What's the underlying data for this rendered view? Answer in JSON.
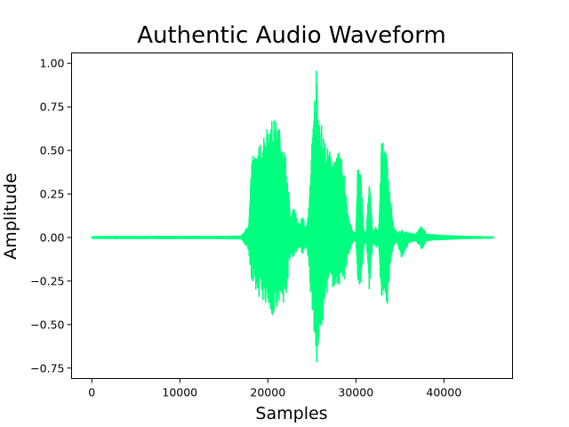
{
  "chart_data": {
    "type": "line",
    "title": "Authentic Audio Waveform",
    "xlabel": "Samples",
    "ylabel": "Amplitude",
    "xlim": [
      -2300,
      47800
    ],
    "ylim": [
      -0.81,
      1.06
    ],
    "x_ticks": [
      0,
      10000,
      20000,
      30000,
      40000
    ],
    "y_ticks": [
      -0.75,
      -0.5,
      -0.25,
      0.0,
      0.25,
      0.5,
      0.75,
      1.0
    ],
    "x_tick_labels": [
      "0",
      "10000",
      "20000",
      "30000",
      "40000"
    ],
    "y_tick_labels": [
      "−0.75",
      "−0.50",
      "−0.25",
      "0.00",
      "0.25",
      "0.50",
      "0.75",
      "1.00"
    ],
    "grid": false,
    "line_color": "#00ff7f",
    "series": [
      {
        "sample_count": 45700,
        "envelope": {
          "x": [
            0,
            2000,
            5000,
            8000,
            11000,
            14000,
            17000,
            17800,
            18200,
            18600,
            19000,
            19500,
            20000,
            20500,
            21000,
            21500,
            22000,
            22600,
            23000,
            23500,
            24000,
            24300,
            24600,
            25000,
            25300,
            25500,
            25800,
            26200,
            26700,
            27200,
            27700,
            28200,
            28700,
            29200,
            29600,
            30000,
            30200,
            30600,
            30900,
            31200,
            31500,
            31900,
            32300,
            32600,
            32900,
            33300,
            33600,
            34000,
            34300,
            34700,
            35200,
            36000,
            36800,
            37500,
            38000,
            39000,
            40000,
            41000,
            42500,
            44000,
            45700
          ],
          "upper": [
            0.005,
            0.006,
            0.006,
            0.006,
            0.006,
            0.006,
            0.008,
            0.07,
            0.5,
            0.46,
            0.52,
            0.6,
            0.65,
            0.68,
            0.67,
            0.6,
            0.48,
            0.12,
            0.18,
            0.07,
            0.13,
            0.04,
            0.13,
            0.55,
            0.81,
            1.0,
            0.76,
            0.62,
            0.52,
            0.49,
            0.45,
            0.5,
            0.36,
            0.12,
            0.04,
            0.02,
            0.43,
            0.35,
            0.04,
            0.03,
            0.38,
            0.03,
            0.06,
            0.04,
            0.55,
            0.53,
            0.44,
            0.2,
            0.06,
            0.03,
            0.04,
            0.03,
            0.02,
            0.07,
            0.02,
            0.015,
            0.012,
            0.01,
            0.006,
            0.005,
            0.003
          ],
          "lower": [
            -0.005,
            -0.006,
            -0.006,
            -0.006,
            -0.006,
            -0.006,
            -0.008,
            -0.07,
            -0.3,
            -0.32,
            -0.34,
            -0.36,
            -0.4,
            -0.45,
            -0.45,
            -0.4,
            -0.35,
            -0.1,
            -0.12,
            -0.05,
            -0.1,
            -0.03,
            -0.12,
            -0.45,
            -0.6,
            -0.77,
            -0.62,
            -0.5,
            -0.32,
            -0.28,
            -0.3,
            -0.27,
            -0.25,
            -0.1,
            -0.03,
            -0.02,
            -0.3,
            -0.28,
            -0.04,
            -0.03,
            -0.33,
            -0.03,
            -0.06,
            -0.04,
            -0.4,
            -0.35,
            -0.38,
            -0.12,
            -0.05,
            -0.03,
            -0.12,
            -0.03,
            -0.02,
            -0.07,
            -0.02,
            -0.015,
            -0.012,
            -0.01,
            -0.006,
            -0.005,
            -0.003
          ]
        }
      }
    ]
  }
}
